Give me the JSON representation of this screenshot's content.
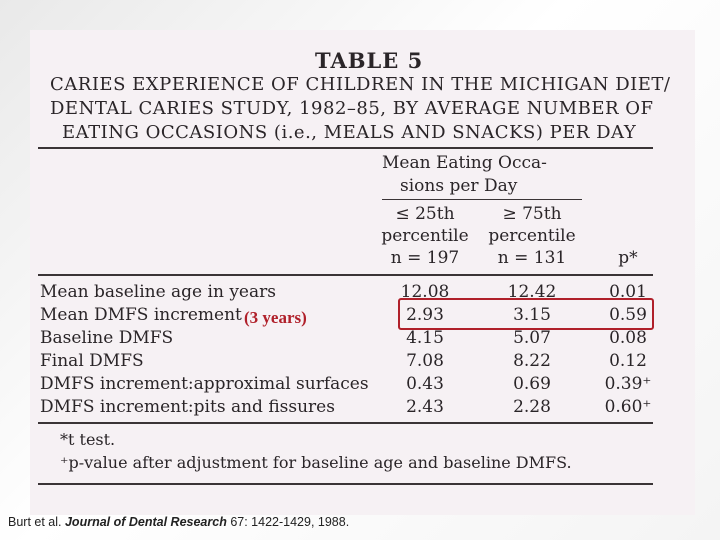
{
  "table": {
    "number": "TABLE 5",
    "title_lines": [
      "CARIES EXPERIENCE OF CHILDREN IN THE MICHIGAN DIET/",
      "DENTAL CARIES STUDY, 1982–85, BY AVERAGE NUMBER OF",
      "EATING OCCASIONS (i.e., MEALS AND SNACKS) PER DAY"
    ],
    "group_header": [
      "Mean Eating Occa-",
      "sions per Day"
    ],
    "columns": [
      {
        "lines": [
          "≤ 25th",
          "percentile",
          "n = 197"
        ]
      },
      {
        "lines": [
          "≥ 75th",
          "percentile",
          "n = 131"
        ]
      },
      {
        "lines": [
          "p*"
        ]
      }
    ],
    "rows": [
      {
        "label": "Mean baseline age in years",
        "values": [
          "12.08",
          "12.42",
          "0.01"
        ]
      },
      {
        "label": "Mean DMFS increment",
        "values": [
          "2.93",
          "3.15",
          "0.59"
        ]
      },
      {
        "label": "Baseline DMFS",
        "values": [
          "4.15",
          "5.07",
          "0.08"
        ]
      },
      {
        "label": "Final DMFS",
        "values": [
          "7.08",
          "8.22",
          "0.12"
        ]
      },
      {
        "label": "DMFS increment:approximal surfaces",
        "values": [
          "0.43",
          "0.69",
          "0.39⁺"
        ]
      },
      {
        "label": "DMFS increment:pits and fissures",
        "values": [
          "2.43",
          "2.28",
          "0.60⁺"
        ]
      }
    ],
    "footnotes": [
      "*t test.",
      "⁺p-value after adjustment for baseline age and baseline DMFS."
    ]
  },
  "annotation": {
    "text": "(3 years)",
    "color": "#b0202a"
  },
  "citation": {
    "authors": "Burt et al. ",
    "journal": "Journal of Dental Research",
    "details": " 67: 1422-1429, 1988."
  }
}
